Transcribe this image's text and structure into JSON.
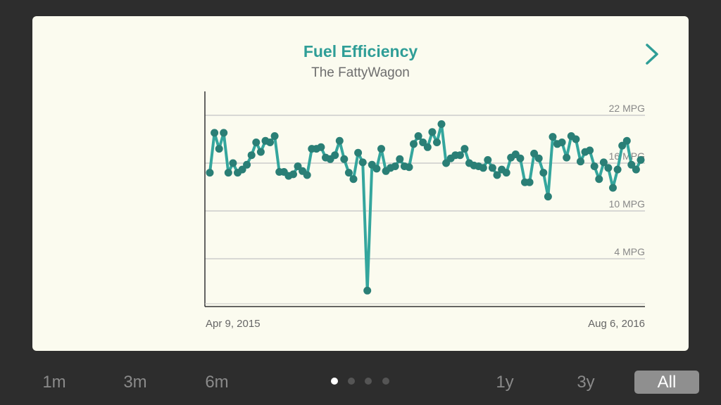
{
  "card": {
    "title": "Fuel Efficiency",
    "subtitle": "The FattyWagon",
    "next_icon": "chevron-right-icon"
  },
  "colors": {
    "accent": "#2f9e97",
    "line": "#34a69d",
    "point": "#2a7f76",
    "grid": "#c4c4c4",
    "card_bg": "#fbfbef",
    "screen_bg": "#2d2d2d"
  },
  "chart_data": {
    "type": "line",
    "title": "",
    "xlabel": "",
    "ylabel": "",
    "x_start_label": "Apr 9, 2015",
    "x_end_label": "Aug 6, 2016",
    "y_ticks": [
      {
        "value": 4,
        "label": "4 MPG"
      },
      {
        "value": 10,
        "label": "10 MPG"
      },
      {
        "value": 16,
        "label": "16 MPG"
      },
      {
        "value": 22,
        "label": "22 MPG"
      }
    ],
    "ylim": [
      -2,
      25
    ],
    "grid": true,
    "series": [
      {
        "values": [
          14.8,
          19.8,
          17.8,
          19.8,
          14.8,
          16.0,
          14.8,
          15.2,
          15.8,
          17.0,
          18.6,
          17.4,
          18.8,
          18.6,
          19.4,
          14.9,
          14.9,
          14.4,
          14.6,
          15.6,
          15.0,
          14.5,
          17.8,
          17.8,
          18.0,
          16.7,
          16.5,
          17.0,
          18.8,
          16.5,
          14.8,
          14.0,
          17.3,
          16.1,
          0.0,
          15.8,
          15.3,
          17.8,
          15.0,
          15.4,
          15.6,
          16.5,
          15.6,
          15.5,
          18.4,
          19.4,
          18.6,
          18.0,
          19.9,
          18.6,
          20.9,
          16.0,
          16.6,
          17.0,
          17.0,
          17.8,
          16.0,
          15.7,
          15.6,
          15.4,
          16.4,
          15.4,
          14.5,
          15.2,
          14.8,
          16.7,
          17.1,
          16.6,
          13.6,
          13.6,
          17.2,
          16.6,
          14.8,
          11.8,
          19.3,
          18.4,
          18.6,
          16.7,
          19.4,
          19.0,
          16.2,
          17.4,
          17.6,
          15.6,
          14.0,
          16.1,
          15.4,
          12.9,
          15.2,
          18.2,
          18.8,
          15.8,
          15.2,
          16.4
        ]
      }
    ]
  },
  "nav": {
    "range_buttons": [
      "1m",
      "3m",
      "6m",
      "1y",
      "3y",
      "All"
    ],
    "selected": "All",
    "page_dots": 4,
    "active_dot": 0
  }
}
